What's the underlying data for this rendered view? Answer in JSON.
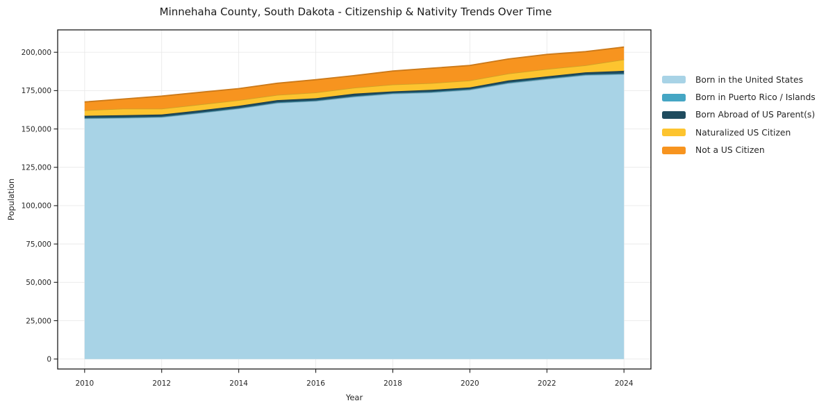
{
  "title": "Minnehaha County, South Dakota - Citizenship & Nativity Trends Over Time",
  "chart_data": {
    "type": "area",
    "stacked": true,
    "title": "Minnehaha County, South Dakota - Citizenship & Nativity Trends Over Time",
    "xlabel": "Year",
    "ylabel": "Population",
    "x": [
      2010,
      2011,
      2012,
      2013,
      2014,
      2015,
      2016,
      2017,
      2018,
      2019,
      2020,
      2021,
      2022,
      2023,
      2024
    ],
    "series": [
      {
        "name": "Born in the United States",
        "color": "#a8d3e6",
        "values": [
          156900,
          157200,
          157700,
          160400,
          163300,
          167000,
          168200,
          171000,
          173000,
          173800,
          175500,
          179800,
          182500,
          185100,
          185700
        ]
      },
      {
        "name": "Born in Puerto Rico / Islands",
        "color": "#45a6c4",
        "values": [
          280,
          300,
          310,
          320,
          330,
          340,
          350,
          360,
          370,
          380,
          390,
          400,
          410,
          420,
          430
        ]
      },
      {
        "name": "Born Abroad of US Parent(s)",
        "color": "#1f4b5e",
        "values": [
          1420,
          1500,
          1390,
          1480,
          1470,
          1460,
          1450,
          1640,
          1130,
          1320,
          1210,
          1400,
          1390,
          1380,
          1770
        ]
      },
      {
        "name": "Naturalized US Citizen",
        "color": "#fdc42f",
        "values": [
          3600,
          4200,
          3800,
          3800,
          3700,
          3400,
          3800,
          3900,
          4500,
          4400,
          4500,
          4500,
          4800,
          4600,
          7400
        ]
      },
      {
        "name": "Not a US Citizen",
        "color": "#f7941f",
        "values": [
          5400,
          6300,
          8200,
          7900,
          7500,
          7600,
          8300,
          7900,
          8800,
          9700,
          9800,
          9500,
          9500,
          8900,
          8100
        ]
      }
    ],
    "x_ticks": [
      2010,
      2012,
      2014,
      2016,
      2018,
      2020,
      2022,
      2024
    ],
    "x_tick_labels": [
      "2010",
      "2012",
      "2014",
      "2016",
      "2018",
      "2020",
      "2022",
      "2024"
    ],
    "y_ticks": [
      0,
      25000,
      50000,
      75000,
      100000,
      125000,
      150000,
      175000,
      200000
    ],
    "y_tick_labels": [
      "0",
      "25,000",
      "50,000",
      "75,000",
      "100,000",
      "125,000",
      "150,000",
      "175,000",
      "200,000"
    ],
    "xlim": [
      2009.3,
      2024.7
    ],
    "ylim": [
      -6500,
      214600
    ],
    "grid": true,
    "grid_color": "#e9e9e9",
    "spine_color": "#1a1a1a",
    "background_color": "#ffffff",
    "legend_position": "right"
  }
}
